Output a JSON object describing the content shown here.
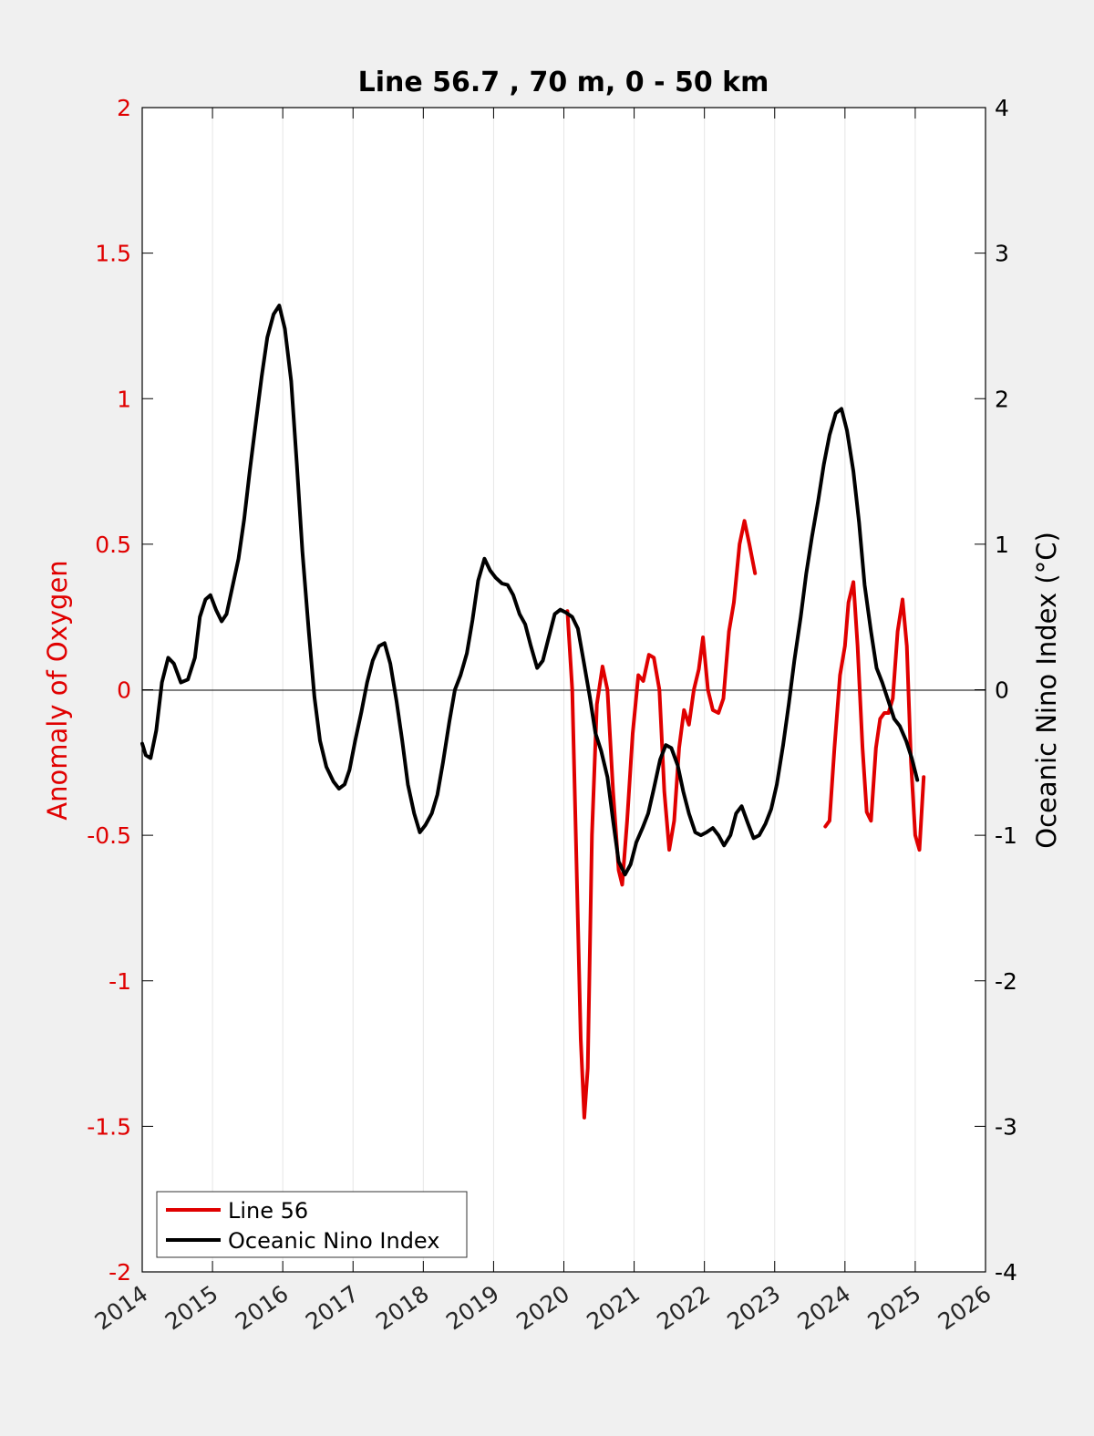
{
  "chart_data": {
    "type": "line",
    "title": "Line 56.7 , 70 m, 0 - 50 km",
    "ylabel_left": "Anomaly of Oxygen",
    "ylabel_right": "Oceanic Nino Index (°C)",
    "xlim": [
      2014,
      2026
    ],
    "ylim_left": [
      -2,
      2
    ],
    "ylim_right": [
      -4,
      4
    ],
    "x_ticks": [
      "2014",
      "2015",
      "2016",
      "2017",
      "2018",
      "2019",
      "2020",
      "2021",
      "2022",
      "2023",
      "2024",
      "2025",
      "2026"
    ],
    "y_ticks_left": [
      "2",
      "1.5",
      "1",
      "0.5",
      "0",
      "-0.5",
      "-1",
      "-1.5",
      "-2"
    ],
    "y_ticks_right": [
      "4",
      "3",
      "2",
      "1",
      "0",
      "-1",
      "-2",
      "-3",
      "-4"
    ],
    "grid": "vertical",
    "legend_position": "bottom-left",
    "colors": {
      "oxygen": "#e00000",
      "oni": "#000000",
      "left_axis": "#e00000",
      "right_axis": "#000000"
    },
    "series": [
      {
        "name": "Line 56",
        "axis": "left",
        "color": "#e00000",
        "segments": [
          [
            [
              2020.05,
              0.27
            ],
            [
              2020.12,
              0.0
            ],
            [
              2020.18,
              -0.6
            ],
            [
              2020.24,
              -1.2
            ],
            [
              2020.29,
              -1.47
            ],
            [
              2020.34,
              -1.3
            ],
            [
              2020.4,
              -0.5
            ],
            [
              2020.47,
              -0.05
            ],
            [
              2020.55,
              0.08
            ],
            [
              2020.62,
              0.0
            ],
            [
              2020.7,
              -0.35
            ],
            [
              2020.78,
              -0.62
            ],
            [
              2020.83,
              -0.67
            ],
            [
              2020.9,
              -0.45
            ],
            [
              2020.98,
              -0.15
            ],
            [
              2021.06,
              0.05
            ],
            [
              2021.13,
              0.03
            ],
            [
              2021.21,
              0.12
            ],
            [
              2021.28,
              0.11
            ],
            [
              2021.36,
              0.0
            ],
            [
              2021.43,
              -0.35
            ],
            [
              2021.5,
              -0.55
            ],
            [
              2021.57,
              -0.45
            ],
            [
              2021.64,
              -0.2
            ],
            [
              2021.71,
              -0.07
            ],
            [
              2021.78,
              -0.12
            ],
            [
              2021.85,
              0.0
            ],
            [
              2021.92,
              0.07
            ],
            [
              2021.98,
              0.18
            ],
            [
              2022.05,
              0.0
            ],
            [
              2022.12,
              -0.07
            ],
            [
              2022.2,
              -0.08
            ],
            [
              2022.27,
              -0.03
            ],
            [
              2022.35,
              0.2
            ],
            [
              2022.42,
              0.3
            ],
            [
              2022.5,
              0.5
            ],
            [
              2022.57,
              0.58
            ],
            [
              2022.64,
              0.5
            ],
            [
              2022.72,
              0.4
            ]
          ],
          [
            [
              2023.72,
              -0.47
            ],
            [
              2023.78,
              -0.45
            ],
            [
              2023.85,
              -0.2
            ],
            [
              2023.93,
              0.05
            ],
            [
              2024.0,
              0.15
            ],
            [
              2024.05,
              0.3
            ],
            [
              2024.12,
              0.37
            ],
            [
              2024.18,
              0.15
            ],
            [
              2024.25,
              -0.2
            ],
            [
              2024.31,
              -0.42
            ],
            [
              2024.37,
              -0.45
            ],
            [
              2024.44,
              -0.2
            ],
            [
              2024.5,
              -0.1
            ],
            [
              2024.56,
              -0.08
            ],
            [
              2024.62,
              -0.08
            ],
            [
              2024.68,
              -0.03
            ],
            [
              2024.75,
              0.2
            ],
            [
              2024.82,
              0.31
            ],
            [
              2024.88,
              0.15
            ],
            [
              2024.94,
              -0.25
            ],
            [
              2025.0,
              -0.5
            ],
            [
              2025.06,
              -0.55
            ],
            [
              2025.12,
              -0.3
            ]
          ]
        ]
      },
      {
        "name": "Oceanic Nino Index",
        "axis": "right",
        "color": "#000000",
        "segments": [
          [
            [
              2014.0,
              -0.37
            ],
            [
              2014.05,
              -0.45
            ],
            [
              2014.12,
              -0.47
            ],
            [
              2014.2,
              -0.28
            ],
            [
              2014.28,
              0.05
            ],
            [
              2014.37,
              0.22
            ],
            [
              2014.45,
              0.18
            ],
            [
              2014.55,
              0.05
            ],
            [
              2014.65,
              0.07
            ],
            [
              2014.75,
              0.22
            ],
            [
              2014.82,
              0.5
            ],
            [
              2014.9,
              0.62
            ],
            [
              2014.97,
              0.65
            ],
            [
              2015.05,
              0.55
            ],
            [
              2015.13,
              0.47
            ],
            [
              2015.2,
              0.52
            ],
            [
              2015.28,
              0.7
            ],
            [
              2015.37,
              0.9
            ],
            [
              2015.45,
              1.17
            ],
            [
              2015.53,
              1.5
            ],
            [
              2015.62,
              1.85
            ],
            [
              2015.7,
              2.15
            ],
            [
              2015.78,
              2.42
            ],
            [
              2015.87,
              2.58
            ],
            [
              2015.95,
              2.64
            ],
            [
              2016.03,
              2.48
            ],
            [
              2016.12,
              2.12
            ],
            [
              2016.2,
              1.55
            ],
            [
              2016.28,
              0.95
            ],
            [
              2016.37,
              0.4
            ],
            [
              2016.45,
              -0.05
            ],
            [
              2016.53,
              -0.35
            ],
            [
              2016.62,
              -0.53
            ],
            [
              2016.72,
              -0.63
            ],
            [
              2016.8,
              -0.68
            ],
            [
              2016.88,
              -0.65
            ],
            [
              2016.95,
              -0.55
            ],
            [
              2017.03,
              -0.35
            ],
            [
              2017.12,
              -0.15
            ],
            [
              2017.2,
              0.05
            ],
            [
              2017.28,
              0.2
            ],
            [
              2017.37,
              0.3
            ],
            [
              2017.45,
              0.32
            ],
            [
              2017.53,
              0.18
            ],
            [
              2017.62,
              -0.08
            ],
            [
              2017.7,
              -0.35
            ],
            [
              2017.78,
              -0.65
            ],
            [
              2017.87,
              -0.85
            ],
            [
              2017.95,
              -0.98
            ],
            [
              2018.03,
              -0.93
            ],
            [
              2018.12,
              -0.85
            ],
            [
              2018.2,
              -0.72
            ],
            [
              2018.28,
              -0.5
            ],
            [
              2018.37,
              -0.22
            ],
            [
              2018.45,
              0.0
            ],
            [
              2018.53,
              0.1
            ],
            [
              2018.62,
              0.25
            ],
            [
              2018.7,
              0.48
            ],
            [
              2018.78,
              0.75
            ],
            [
              2018.87,
              0.9
            ],
            [
              2018.95,
              0.82
            ],
            [
              2019.03,
              0.77
            ],
            [
              2019.12,
              0.73
            ],
            [
              2019.2,
              0.72
            ],
            [
              2019.28,
              0.65
            ],
            [
              2019.37,
              0.52
            ],
            [
              2019.45,
              0.45
            ],
            [
              2019.53,
              0.3
            ],
            [
              2019.62,
              0.15
            ],
            [
              2019.7,
              0.2
            ],
            [
              2019.78,
              0.35
            ],
            [
              2019.87,
              0.52
            ],
            [
              2019.95,
              0.55
            ],
            [
              2020.03,
              0.53
            ],
            [
              2020.12,
              0.5
            ],
            [
              2020.2,
              0.42
            ],
            [
              2020.28,
              0.2
            ],
            [
              2020.37,
              -0.05
            ],
            [
              2020.45,
              -0.3
            ],
            [
              2020.53,
              -0.42
            ],
            [
              2020.62,
              -0.6
            ],
            [
              2020.7,
              -0.9
            ],
            [
              2020.78,
              -1.18
            ],
            [
              2020.87,
              -1.27
            ],
            [
              2020.95,
              -1.2
            ],
            [
              2021.03,
              -1.05
            ],
            [
              2021.12,
              -0.95
            ],
            [
              2021.2,
              -0.85
            ],
            [
              2021.28,
              -0.68
            ],
            [
              2021.37,
              -0.48
            ],
            [
              2021.45,
              -0.38
            ],
            [
              2021.53,
              -0.4
            ],
            [
              2021.62,
              -0.52
            ],
            [
              2021.7,
              -0.7
            ],
            [
              2021.78,
              -0.85
            ],
            [
              2021.87,
              -0.98
            ],
            [
              2021.95,
              -1.0
            ],
            [
              2022.03,
              -0.98
            ],
            [
              2022.12,
              -0.95
            ],
            [
              2022.2,
              -1.0
            ],
            [
              2022.28,
              -1.07
            ],
            [
              2022.37,
              -1.0
            ],
            [
              2022.45,
              -0.85
            ],
            [
              2022.53,
              -0.8
            ],
            [
              2022.62,
              -0.92
            ],
            [
              2022.7,
              -1.02
            ],
            [
              2022.78,
              -1.0
            ],
            [
              2022.87,
              -0.92
            ],
            [
              2022.95,
              -0.82
            ],
            [
              2023.03,
              -0.65
            ],
            [
              2023.12,
              -0.38
            ],
            [
              2023.2,
              -0.1
            ],
            [
              2023.28,
              0.2
            ],
            [
              2023.37,
              0.5
            ],
            [
              2023.45,
              0.8
            ],
            [
              2023.53,
              1.05
            ],
            [
              2023.62,
              1.3
            ],
            [
              2023.7,
              1.55
            ],
            [
              2023.78,
              1.75
            ],
            [
              2023.87,
              1.9
            ],
            [
              2023.95,
              1.93
            ],
            [
              2024.03,
              1.78
            ],
            [
              2024.12,
              1.5
            ],
            [
              2024.2,
              1.15
            ],
            [
              2024.28,
              0.72
            ],
            [
              2024.37,
              0.4
            ],
            [
              2024.45,
              0.15
            ],
            [
              2024.53,
              0.05
            ],
            [
              2024.62,
              -0.08
            ],
            [
              2024.7,
              -0.2
            ],
            [
              2024.78,
              -0.25
            ],
            [
              2024.87,
              -0.35
            ],
            [
              2024.95,
              -0.47
            ],
            [
              2025.03,
              -0.62
            ]
          ]
        ]
      }
    ]
  }
}
